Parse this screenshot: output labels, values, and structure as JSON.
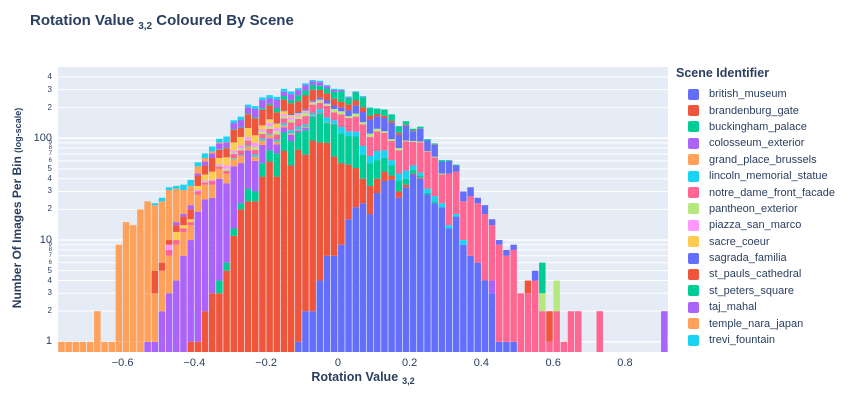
{
  "title": {
    "prefix": "Rotation Value",
    "subscript": "3,2",
    "suffix": "Coloured By Scene"
  },
  "legend": {
    "title": "Scene Identifier"
  },
  "xaxis": {
    "title": "Rotation Value",
    "title_subscript": "3,2",
    "ticks": [
      {
        "v": -0.6,
        "label": "−0.6"
      },
      {
        "v": -0.4,
        "label": "−0.4"
      },
      {
        "v": -0.2,
        "label": "−0.2"
      },
      {
        "v": 0,
        "label": "0"
      },
      {
        "v": 0.2,
        "label": "0.2"
      },
      {
        "v": 0.4,
        "label": "0.4"
      },
      {
        "v": 0.6,
        "label": "0.6"
      },
      {
        "v": 0.8,
        "label": "0.8"
      }
    ]
  },
  "yaxis": {
    "title": "Number Of Images Per Bin",
    "title_note": "(log-scale)",
    "ticks": [
      {
        "v": 400,
        "label": "4",
        "size": "small"
      },
      {
        "v": 300,
        "label": "3",
        "size": "small"
      },
      {
        "v": 200,
        "label": "2",
        "size": "small"
      },
      {
        "v": 100,
        "label": "100",
        "size": "major"
      },
      {
        "v": 90,
        "label": "9",
        "size": "tiny"
      },
      {
        "v": 80,
        "label": "8",
        "size": "tiny"
      },
      {
        "v": 70,
        "label": "7",
        "size": "tiny"
      },
      {
        "v": 60,
        "label": "6",
        "size": "tiny"
      },
      {
        "v": 50,
        "label": "5",
        "size": "small"
      },
      {
        "v": 40,
        "label": "4",
        "size": "small"
      },
      {
        "v": 30,
        "label": "3",
        "size": "small"
      },
      {
        "v": 20,
        "label": "2",
        "size": "small"
      },
      {
        "v": 10,
        "label": "10",
        "size": "major"
      },
      {
        "v": 9,
        "label": "9",
        "size": "tiny"
      },
      {
        "v": 8,
        "label": "8",
        "size": "tiny"
      },
      {
        "v": 7,
        "label": "7",
        "size": "tiny"
      },
      {
        "v": 6,
        "label": "6",
        "size": "tiny"
      },
      {
        "v": 5,
        "label": "5",
        "size": "small"
      },
      {
        "v": 4,
        "label": "4",
        "size": "small"
      },
      {
        "v": 3,
        "label": "3",
        "size": "small"
      },
      {
        "v": 2,
        "label": "2",
        "size": "small"
      },
      {
        "v": 1,
        "label": "1",
        "size": "major"
      }
    ]
  },
  "colors": {
    "title_text": "#2a3f5f",
    "plot_background": "#e5ecf6",
    "gridline": "#ffffff"
  },
  "chart_data": {
    "type": "bar",
    "subtype": "stacked-histogram",
    "title": "Rotation Value 3,2 Coloured By Scene",
    "xlabel": "Rotation Value 3,2",
    "ylabel": "Number Of Images Per Bin (log-scale)",
    "legend_title": "Scene Identifier",
    "legend_position": "right",
    "grid": true,
    "y_scale": "log",
    "y_range_log": [
      -0.1,
      2.7
    ],
    "x_range": [
      -0.78,
      0.92
    ],
    "x_start": -0.78,
    "bin_width": 0.02,
    "n_bins": 85,
    "series": [
      {
        "name": "british_museum",
        "color": "#636EFA",
        "center": 0.18,
        "sigma": 0.11,
        "peak": 40
      },
      {
        "name": "brandenburg_gate",
        "color": "#EF553B",
        "center": -0.09,
        "sigma": 0.1,
        "peak": 95
      },
      {
        "name": "buckingham_palace",
        "color": "#00CC96",
        "center": -0.03,
        "sigma": 0.1,
        "peak": 75
      },
      {
        "name": "colosseum_exterior",
        "color": "#AB63FA",
        "center": -0.27,
        "sigma": 0.09,
        "peak": 40
      },
      {
        "name": "grand_place_brussels",
        "color": "#FFA15A",
        "center": -0.3,
        "sigma": 0.13,
        "peak": 10
      },
      {
        "name": "lincoln_memorial_statue",
        "color": "#19D3F3",
        "center": 0.02,
        "sigma": 0.13,
        "peak": 16
      },
      {
        "name": "notre_dame_front_facade",
        "color": "#FF6692",
        "center": 0.1,
        "sigma": 0.19,
        "peak": 55
      },
      {
        "name": "pantheon_exterior",
        "color": "#B6E880",
        "center": -0.04,
        "sigma": 0.13,
        "peak": 13
      },
      {
        "name": "piazza_san_marco",
        "color": "#FF97FF",
        "center": -0.18,
        "sigma": 0.09,
        "peak": 10
      },
      {
        "name": "sacre_coeur",
        "color": "#FECB52",
        "center": -0.24,
        "sigma": 0.08,
        "peak": 20
      },
      {
        "name": "sagrada_familia",
        "color": "#636EFA",
        "center": 0.14,
        "sigma": 0.12,
        "peak": 40
      },
      {
        "name": "st_pauls_cathedral",
        "color": "#EF553B",
        "center": -0.13,
        "sigma": 0.13,
        "peak": 65
      },
      {
        "name": "st_peters_square",
        "color": "#00CC96",
        "center": 0.0,
        "sigma": 0.11,
        "peak": 55
      },
      {
        "name": "taj_mahal",
        "color": "#AB63FA",
        "center": -0.16,
        "sigma": 0.1,
        "peak": 45
      },
      {
        "name": "temple_nara_japan",
        "color": "#FFA15A",
        "center": -0.52,
        "sigma": 0.09,
        "peak": 22
      },
      {
        "name": "trevi_fountain",
        "color": "#19D3F3",
        "center": -0.18,
        "sigma": 0.14,
        "peak": 18
      }
    ],
    "outlier_bars": [
      {
        "series": "temple_nara_japan",
        "x": -0.77,
        "count": 1
      },
      {
        "series": "temple_nara_japan",
        "x": -0.75,
        "count": 1
      },
      {
        "series": "temple_nara_japan",
        "x": -0.71,
        "count": 1
      },
      {
        "series": "temple_nara_japan",
        "x": -0.69,
        "count": 1
      },
      {
        "series": "temple_nara_japan",
        "x": -0.67,
        "count": 2
      },
      {
        "series": "temple_nara_japan",
        "x": -0.65,
        "count": 1
      },
      {
        "series": "temple_nara_japan",
        "x": -0.63,
        "count": 1
      },
      {
        "series": "st_pauls_cathedral",
        "x": -0.51,
        "count": 2
      },
      {
        "series": "st_pauls_cathedral",
        "x": -0.47,
        "count": 1
      },
      {
        "series": "piazza_san_marco",
        "x": -0.47,
        "count": 1
      },
      {
        "series": "sacre_coeur",
        "x": -0.45,
        "count": 2
      },
      {
        "series": "taj_mahal",
        "x": -0.45,
        "count": 1
      },
      {
        "series": "colosseum_exterior",
        "x": 0.43,
        "count": 1
      },
      {
        "series": "sagrada_familia",
        "x": 0.49,
        "count": 1
      },
      {
        "series": "sagrada_familia",
        "x": 0.55,
        "count": 1
      },
      {
        "series": "st_pauls_cathedral",
        "x": 0.53,
        "count": 1
      },
      {
        "series": "st_pauls_cathedral",
        "x": 0.59,
        "count": 1
      },
      {
        "series": "pantheon_exterior",
        "x": 0.57,
        "count": 1
      },
      {
        "series": "pantheon_exterior",
        "x": 0.61,
        "count": 2
      },
      {
        "series": "st_peters_square",
        "x": 0.57,
        "count": 3
      },
      {
        "series": "notre_dame_front_facade",
        "x": 0.65,
        "count": 2
      },
      {
        "series": "notre_dame_front_facade",
        "x": 0.67,
        "count": 2
      },
      {
        "series": "notre_dame_front_facade",
        "x": 0.73,
        "count": 2
      },
      {
        "series": "taj_mahal",
        "x": 0.91,
        "count": 2
      }
    ]
  }
}
